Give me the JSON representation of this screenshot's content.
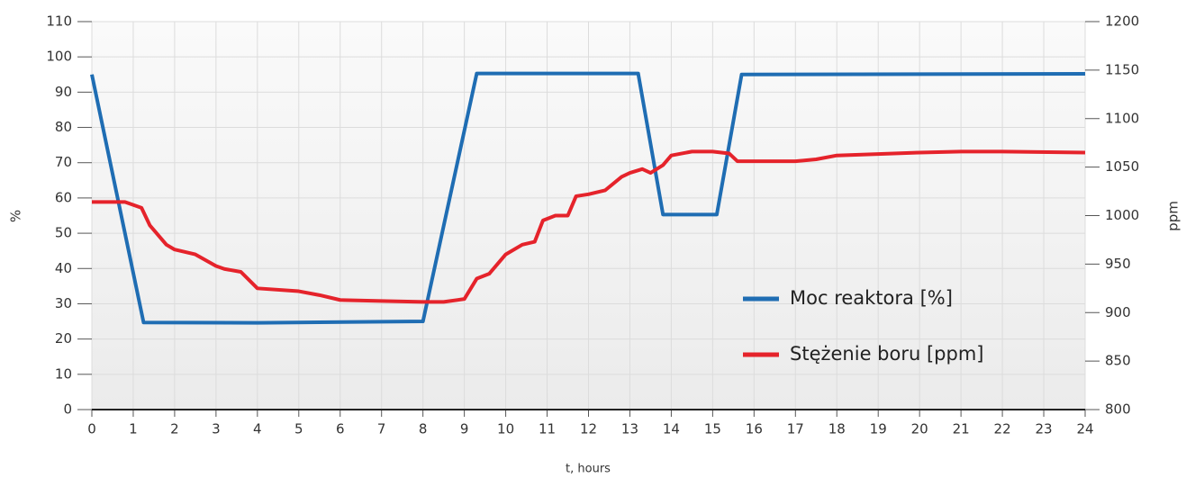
{
  "chart_data": {
    "type": "line",
    "x_label": "t, hours",
    "y_label": "%",
    "y2_label": "ppm",
    "xlim": [
      0,
      24
    ],
    "xticks": [
      0,
      1,
      2,
      3,
      4,
      5,
      6,
      7,
      8,
      9,
      10,
      11,
      12,
      13,
      14,
      15,
      16,
      17,
      18,
      19,
      20,
      21,
      22,
      23,
      24
    ],
    "ylim": [
      0,
      110
    ],
    "yticks": [
      0,
      10,
      20,
      30,
      40,
      50,
      60,
      70,
      80,
      90,
      100,
      110
    ],
    "y2lim": [
      800,
      1200
    ],
    "y2ticks": [
      800,
      850,
      900,
      950,
      1000,
      1050,
      1100,
      1150,
      1200
    ],
    "grid": true,
    "series": [
      {
        "name": "Moc reaktora [%]",
        "color": "#1f6db3",
        "x": [
          0,
          1.25,
          4,
          8,
          9.3,
          13.2,
          13.8,
          15.1,
          15.7,
          24
        ],
        "values": [
          95,
          24.7,
          24.6,
          25,
          95.3,
          95.3,
          55.3,
          55.3,
          95,
          95.2
        ]
      },
      {
        "name": "Stężenie boru [ppm]",
        "color": "#e5232b",
        "axis": "y2",
        "x": [
          0,
          0.8,
          1.2,
          1.4,
          1.8,
          2,
          2.5,
          3,
          3.2,
          3.6,
          4,
          5,
          5.5,
          6,
          7,
          8,
          8.5,
          9,
          9.3,
          9.6,
          10,
          10.4,
          10.7,
          10.9,
          11.2,
          11.5,
          11.7,
          12,
          12.4,
          12.8,
          13,
          13.3,
          13.5,
          13.8,
          14,
          14.5,
          15,
          15.4,
          15.6,
          16,
          17,
          17.5,
          18,
          20,
          21,
          22,
          24
        ],
        "values": [
          1014,
          1014,
          1008,
          990,
          970,
          965,
          960,
          948,
          945,
          942,
          925,
          922,
          918,
          913,
          912,
          911,
          911,
          914,
          935,
          940,
          960,
          970,
          973,
          995,
          1000,
          1000,
          1020,
          1022,
          1026,
          1040,
          1044,
          1048,
          1044,
          1052,
          1062,
          1066,
          1066,
          1064,
          1056,
          1056,
          1056,
          1058,
          1062,
          1065,
          1066,
          1066,
          1065
        ]
      }
    ]
  }
}
